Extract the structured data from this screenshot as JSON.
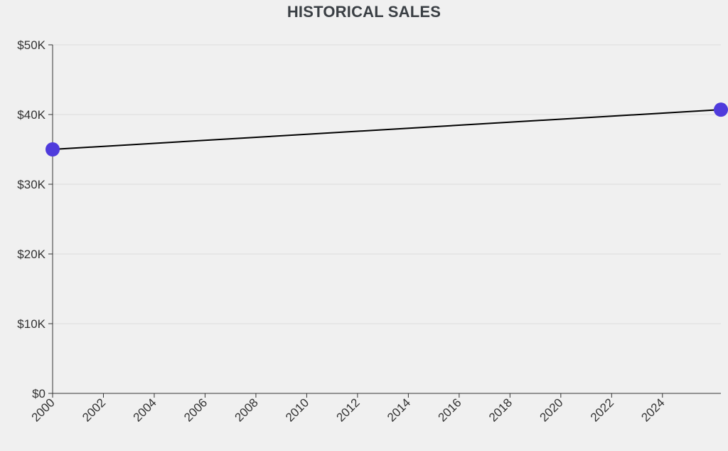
{
  "chart_data": {
    "type": "line",
    "title": "HISTORICAL SALES",
    "xlabel": "",
    "ylabel": "",
    "x_ticks": [
      "2000",
      "2002",
      "2004",
      "2006",
      "2008",
      "2010",
      "2012",
      "2014",
      "2016",
      "2018",
      "2020",
      "2022",
      "2024"
    ],
    "y_ticks": [
      "$0",
      "$10K",
      "$20K",
      "$30K",
      "$40K",
      "$50K"
    ],
    "xlim": [
      2000,
      2026.3
    ],
    "ylim": [
      0,
      50000
    ],
    "grid": true,
    "series": [
      {
        "color": "#4f3bdc",
        "line_color": "#000000",
        "points": [
          {
            "x": 2000,
            "y": 35000
          },
          {
            "x": 2026.3,
            "y": 40700
          }
        ]
      }
    ]
  }
}
